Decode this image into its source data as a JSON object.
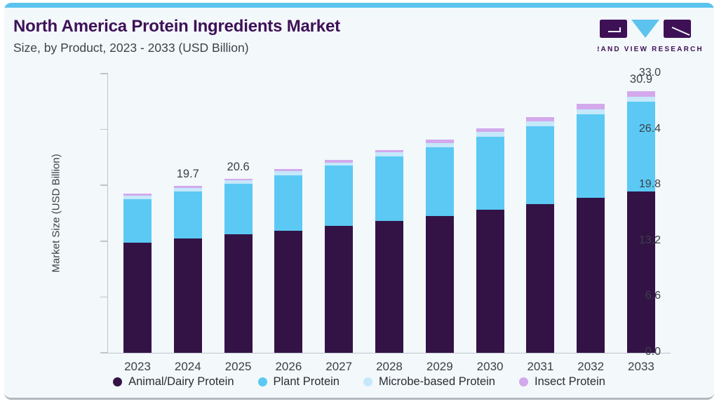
{
  "page": {
    "title": "North America Protein Ingredients Market",
    "subtitle": "Size, by Product, 2023 - 2033 (USD Billion)",
    "brand_name": "GRAND VIEW RESEARCH"
  },
  "colors": {
    "brand_purple": "#3e1157",
    "stripe_blue": "#5cc3ee",
    "card_background": "#f3f8fb",
    "axis_gray": "#c0c5cd",
    "text_gray": "#3b4048",
    "animal_dairy": "#331346",
    "plant": "#5bc9f4",
    "microbe": "#c5e8fb",
    "insect": "#d3a9ec"
  },
  "chart_data": {
    "type": "bar",
    "stacked": true,
    "title": "North America Protein Ingredients Market Size, by Product, 2023 - 2033 (USD Billion)",
    "xlabel": "",
    "ylabel": "Market Size (USD Billion)",
    "ylim": [
      0,
      33.0
    ],
    "yticks": [
      "33.0",
      "26.4",
      "19.8",
      "13.2",
      "6.6",
      "0.0"
    ],
    "grid": false,
    "legend_position": "bottom",
    "categories": [
      "2023",
      "2024",
      "2025",
      "2026",
      "2027",
      "2028",
      "2029",
      "2030",
      "2031",
      "2032",
      "2033"
    ],
    "series": [
      {
        "name": "Animal/Dairy Protein",
        "color": "#331346",
        "values": [
          13.0,
          13.5,
          14.0,
          14.4,
          15.0,
          15.6,
          16.2,
          16.9,
          17.6,
          18.3,
          19.1
        ]
      },
      {
        "name": "Plant Protein",
        "color": "#5bc9f4",
        "values": [
          5.2,
          5.6,
          6.0,
          6.6,
          7.1,
          7.6,
          8.1,
          8.6,
          9.2,
          9.9,
          10.6
        ]
      },
      {
        "name": "Microbe-based Protein",
        "color": "#c5e8fb",
        "values": [
          0.4,
          0.4,
          0.4,
          0.5,
          0.4,
          0.5,
          0.5,
          0.6,
          0.6,
          0.6,
          0.6
        ]
      },
      {
        "name": "Insect Protein",
        "color": "#d3a9ec",
        "values": [
          0.2,
          0.2,
          0.2,
          0.2,
          0.3,
          0.3,
          0.4,
          0.4,
          0.5,
          0.6,
          0.6
        ]
      }
    ],
    "bar_total_labels": [
      "",
      "19.7",
      "20.6",
      "",
      "",
      "",
      "",
      "",
      "",
      "",
      "30.9"
    ]
  }
}
